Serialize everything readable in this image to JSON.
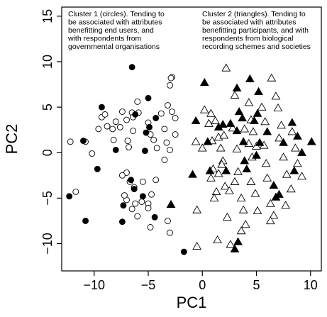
{
  "chart_data": {
    "type": "scatter",
    "xlabel": "PC1",
    "ylabel": "PC2",
    "xlim": [
      -13,
      11
    ],
    "ylim": [
      -13,
      16
    ],
    "x_ticks": [
      -10,
      -5,
      0,
      5,
      10
    ],
    "y_ticks": [
      -10,
      -5,
      0,
      5,
      10,
      15
    ],
    "x_tick_labels": [
      "−10",
      "−5",
      "0",
      "5",
      "10"
    ],
    "y_tick_labels": [
      "−10",
      "−5",
      "0",
      "5",
      "10",
      "15"
    ],
    "grid": false,
    "annotations": [
      {
        "lines": [
          "Cluster 1 (circles). Tending to",
          "be associated with attributes",
          "benefitting end users, and",
          "with respondents from",
          "governmental organisations"
        ]
      },
      {
        "lines": [
          "Cluster 2 (triangles). Tending to",
          "be associated with attributes",
          "benefitting participants, and with",
          "respondents from biological",
          "recording schemes and societies"
        ]
      }
    ],
    "series": [
      {
        "marker": "open-circle",
        "points": [
          [
            -12.2,
            1.2
          ],
          [
            -11.7,
            -4.3
          ],
          [
            -10.8,
            1.2
          ],
          [
            -10.2,
            -0.1
          ],
          [
            -9.6,
            2.6
          ],
          [
            -9.3,
            3.9
          ],
          [
            -9.0,
            4.2
          ],
          [
            -8.8,
            2.9
          ],
          [
            -8.3,
            2.6
          ],
          [
            -8.2,
            1.4
          ],
          [
            -8.0,
            3.4
          ],
          [
            -7.6,
            2.8
          ],
          [
            -7.4,
            4.5
          ],
          [
            -7.0,
            3.6
          ],
          [
            -6.9,
            1.3
          ],
          [
            -6.8,
            0.6
          ],
          [
            -6.5,
            4.4
          ],
          [
            -6.4,
            3.9
          ],
          [
            -6.4,
            2.4
          ],
          [
            -6.0,
            5.6
          ],
          [
            -5.9,
            4.4
          ],
          [
            -5.0,
            3.3
          ],
          [
            -4.8,
            2.0
          ],
          [
            -4.5,
            1.4
          ],
          [
            -4.2,
            0.5
          ],
          [
            -3.8,
            4.3
          ],
          [
            -3.5,
            2.6
          ],
          [
            -3.3,
            1.1
          ],
          [
            -3.0,
            0.3
          ],
          [
            -2.8,
            8.3
          ],
          [
            -2.9,
            8.2
          ],
          [
            -3.0,
            7.4
          ],
          [
            -3.2,
            5.2
          ],
          [
            -2.8,
            4.5
          ],
          [
            -2.5,
            3.8
          ],
          [
            -2.5,
            2.0
          ],
          [
            -3.5,
            -0.8
          ],
          [
            -4.3,
            -3.0
          ],
          [
            -4.7,
            -4.6
          ],
          [
            -5.0,
            -5.6
          ],
          [
            -5.6,
            -5.4
          ],
          [
            -6.2,
            -5.6
          ],
          [
            -7.0,
            -5.2
          ],
          [
            -7.0,
            -2.2
          ],
          [
            -7.4,
            -2.5
          ],
          [
            -6.7,
            -3.2
          ],
          [
            -6.3,
            -3.8
          ],
          [
            -5.5,
            -3.2
          ],
          [
            -5.0,
            -6.1
          ],
          [
            -6.0,
            -7.0
          ],
          [
            -6.5,
            -6.2
          ],
          [
            -4.8,
            -8.2
          ],
          [
            -3.2,
            -7.5
          ],
          [
            -3.0,
            -8.8
          ],
          [
            -7.2,
            -4.7
          ]
        ]
      },
      {
        "marker": "filled-circle",
        "points": [
          [
            -12.3,
            -4.8
          ],
          [
            -11.0,
            1.3
          ],
          [
            -10.8,
            -7.5
          ],
          [
            -9.7,
            -1.8
          ],
          [
            -9.3,
            5.0
          ],
          [
            -8.0,
            0.3
          ],
          [
            -6.5,
            9.4
          ],
          [
            -6.2,
            4.2
          ],
          [
            -5.2,
            2.2
          ],
          [
            -5.0,
            6.0
          ],
          [
            -4.9,
            2.8
          ],
          [
            -4.3,
            3.8
          ],
          [
            -5.3,
            0.2
          ],
          [
            -6.6,
            -3.0
          ],
          [
            -5.5,
            -4.8
          ],
          [
            -6.3,
            -4.0
          ],
          [
            -7.3,
            -5.8
          ],
          [
            -7.4,
            -7.6
          ],
          [
            -4.4,
            -7.1
          ],
          [
            -1.7,
            -10.9
          ]
        ]
      },
      {
        "marker": "open-triangle",
        "points": [
          [
            -0.6,
            1.2
          ],
          [
            -0.5,
            -6.3
          ],
          [
            -0.5,
            -10.3
          ],
          [
            0.2,
            4.7
          ],
          [
            0.8,
            4.3
          ],
          [
            0.6,
            3.2
          ],
          [
            0.9,
            1.3
          ],
          [
            1.2,
            3.5
          ],
          [
            1.0,
            -1.8
          ],
          [
            1.5,
            -2.3
          ],
          [
            1.3,
            -4.3
          ],
          [
            1.5,
            1.7
          ],
          [
            1.7,
            0.5
          ],
          [
            1.9,
            -0.9
          ],
          [
            2.1,
            -3.7
          ],
          [
            2.3,
            -7.1
          ],
          [
            2.5,
            -4.2
          ],
          [
            2.6,
            -10.1
          ],
          [
            2.2,
            9.3
          ],
          [
            3.0,
            6.3
          ],
          [
            2.8,
            2.7
          ],
          [
            3.2,
            0.4
          ],
          [
            3.3,
            -2.1
          ],
          [
            3.0,
            -3.2
          ],
          [
            3.6,
            -5.0
          ],
          [
            3.8,
            -6.3
          ],
          [
            4.0,
            -7.9
          ],
          [
            4.3,
            5.5
          ],
          [
            4.5,
            3.6
          ],
          [
            4.7,
            2.3
          ],
          [
            4.3,
            1.0
          ],
          [
            4.6,
            -0.5
          ],
          [
            4.5,
            -3.2
          ],
          [
            4.9,
            -4.5
          ],
          [
            5.1,
            -6.4
          ],
          [
            5.5,
            5.0
          ],
          [
            5.8,
            3.4
          ],
          [
            5.7,
            0.8
          ],
          [
            5.9,
            -1.2
          ],
          [
            6.0,
            -2.8
          ],
          [
            6.3,
            -5.6
          ],
          [
            6.6,
            -6.9
          ],
          [
            6.4,
            8.2
          ],
          [
            6.8,
            6.2
          ],
          [
            7.0,
            4.9
          ],
          [
            7.3,
            3.0
          ],
          [
            7.1,
            1.6
          ],
          [
            7.5,
            -0.5
          ],
          [
            7.8,
            -2.4
          ],
          [
            8.2,
            -4.0
          ],
          [
            8.3,
            2.3
          ],
          [
            8.6,
            0.5
          ],
          [
            8.8,
            -1.2
          ],
          [
            9.2,
            -2.6
          ],
          [
            5.0,
            0.7
          ],
          [
            3.9,
            2.6
          ],
          [
            2.0,
            1.9
          ],
          [
            1.8,
            -1.3
          ],
          [
            0.8,
            -2.8
          ],
          [
            1.1,
            -5.0
          ],
          [
            3.6,
            -8.6
          ],
          [
            6.3,
            -7.5
          ],
          [
            7.7,
            -5.8
          ],
          [
            0.0,
            0.5
          ],
          [
            1.4,
            -9.6
          ]
        ]
      },
      {
        "marker": "filled-triangle",
        "points": [
          [
            -2.9,
            -5.7
          ],
          [
            -0.9,
            -2.4
          ],
          [
            -0.6,
            3.5
          ],
          [
            0.2,
            7.7
          ],
          [
            0.5,
            1.2
          ],
          [
            0.7,
            -2.0
          ],
          [
            1.5,
            2.8
          ],
          [
            1.9,
            3.1
          ],
          [
            2.2,
            -2.0
          ],
          [
            3.2,
            7.1
          ],
          [
            3.4,
            4.5
          ],
          [
            3.7,
            3.8
          ],
          [
            3.2,
            2.4
          ],
          [
            3.8,
            1.2
          ],
          [
            3.9,
            -0.9
          ],
          [
            4.1,
            -1.8
          ],
          [
            3.3,
            -9.8
          ],
          [
            3.0,
            -10.6
          ],
          [
            4.4,
            8.1
          ],
          [
            5.2,
            6.7
          ],
          [
            5.1,
            4.3
          ],
          [
            5.3,
            1.1
          ],
          [
            5.0,
            -0.3
          ],
          [
            6.6,
            -3.6
          ],
          [
            6.8,
            -4.9
          ],
          [
            7.1,
            -4.6
          ],
          [
            8.3,
            3.3
          ],
          [
            8.8,
            1.8
          ],
          [
            9.2,
            0.0
          ],
          [
            10.1,
            1.2
          ],
          [
            8.5,
            -2.0
          ],
          [
            2.6,
            3.2
          ],
          [
            4.8,
            3.5
          ],
          [
            7.5,
            1.1
          ],
          [
            6.0,
            2.3
          ]
        ]
      }
    ]
  }
}
